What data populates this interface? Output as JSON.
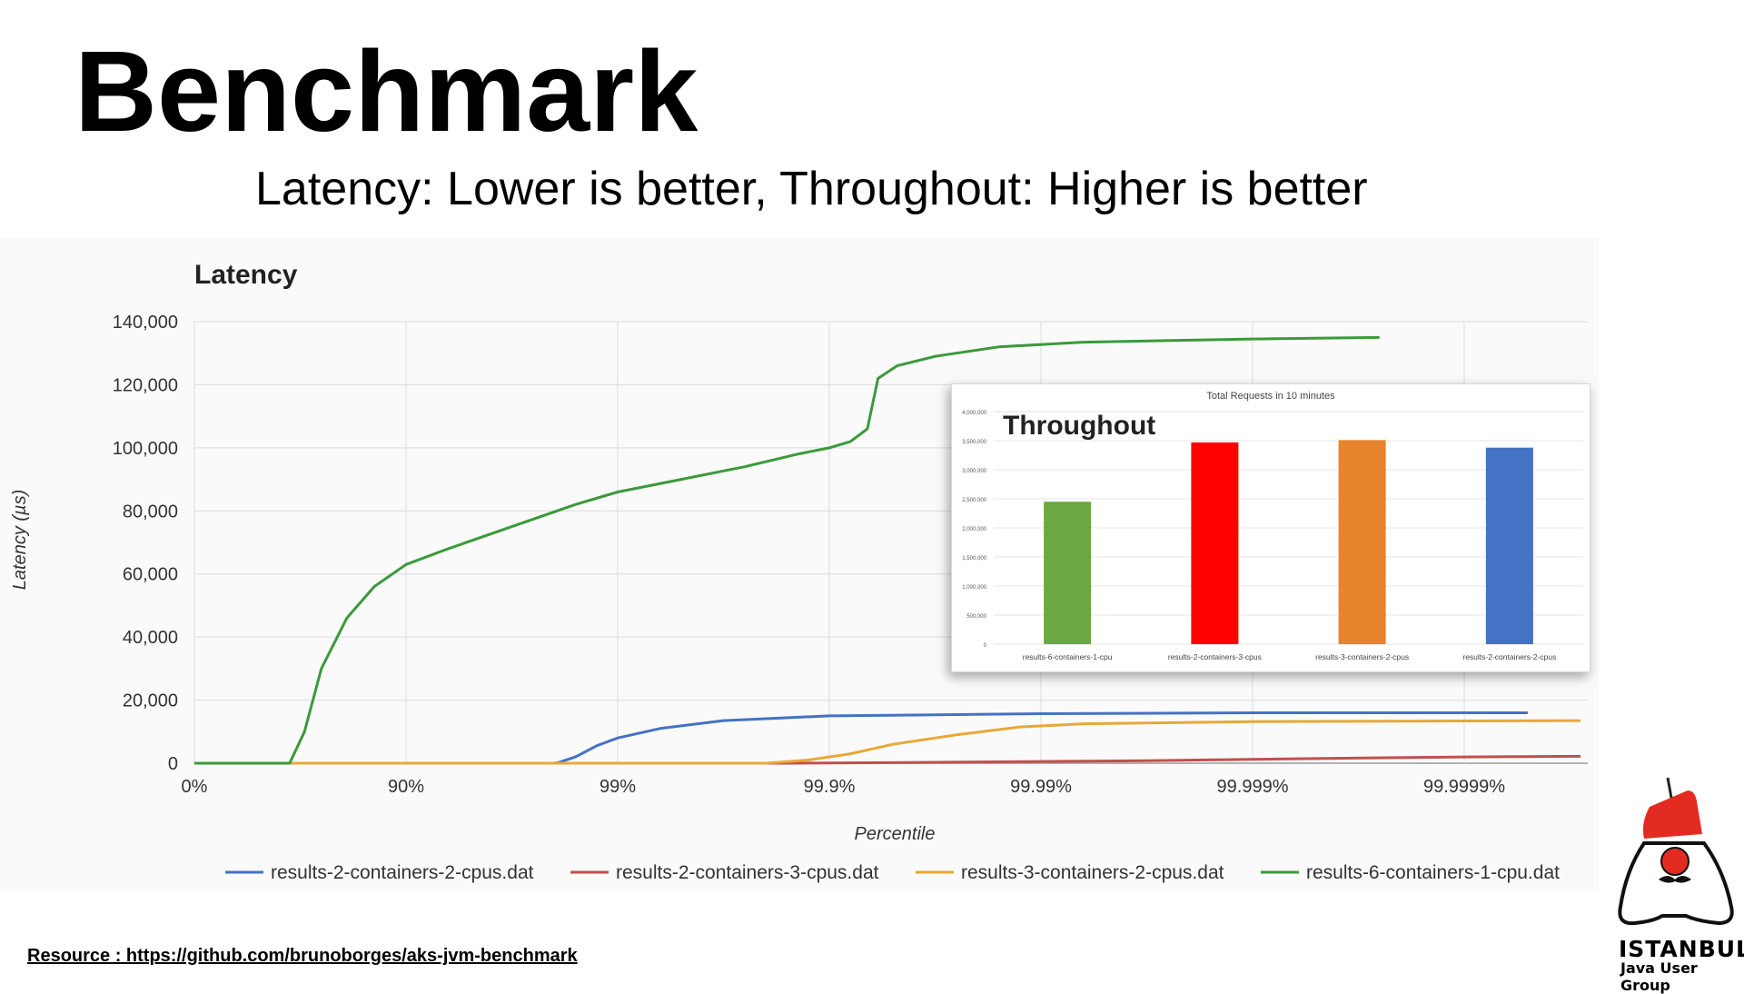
{
  "slide": {
    "title": "Benchmark",
    "subtitle": "Latency: Lower is better, Throughout: Higher is better",
    "resource": "Resource : https://github.com/brunoborges/aks-jvm-benchmark",
    "logo_line1": "ISTANBUL",
    "logo_line2": "Java User Group"
  },
  "chart_data": [
    {
      "type": "line",
      "title": "Latency",
      "xlabel": "Percentile",
      "ylabel": "Latency (µs)",
      "ylim": [
        0,
        140000
      ],
      "yticks": [
        0,
        20000,
        40000,
        60000,
        80000,
        100000,
        120000,
        140000
      ],
      "ytick_labels": [
        "0",
        "20,000",
        "40,000",
        "60,000",
        "80,000",
        "100,000",
        "120,000",
        "140,000"
      ],
      "xtick_labels": [
        "0%",
        "90%",
        "99%",
        "99.9%",
        "99.99%",
        "99.999%",
        "99.9999%"
      ],
      "grid": true,
      "legend_position": "bottom",
      "series": [
        {
          "name": "results-2-containers-2-cpus.dat",
          "color": "#4472c4",
          "points": [
            [
              0,
              0
            ],
            [
              1,
              0
            ],
            [
              1.7,
              0
            ],
            [
              1.72,
              200
            ],
            [
              1.8,
              2000
            ],
            [
              1.9,
              5500
            ],
            [
              2.0,
              8000
            ],
            [
              2.2,
              11000
            ],
            [
              2.5,
              13500
            ],
            [
              3.0,
              15000
            ],
            [
              4.0,
              15700
            ],
            [
              5.0,
              16000
            ],
            [
              6.0,
              16000
            ],
            [
              6.3,
              16000
            ]
          ]
        },
        {
          "name": "results-2-containers-3-cpus.dat",
          "color": "#c0504d",
          "points": [
            [
              0,
              0
            ],
            [
              2.8,
              0
            ],
            [
              3.5,
              300
            ],
            [
              4.5,
              800
            ],
            [
              5.2,
              1400
            ],
            [
              6.0,
              2000
            ],
            [
              6.55,
              2200
            ]
          ]
        },
        {
          "name": "results-3-containers-2-cpus.dat",
          "color": "#e8a838",
          "points": [
            [
              0,
              0
            ],
            [
              2.7,
              0
            ],
            [
              2.9,
              1000
            ],
            [
              3.1,
              3000
            ],
            [
              3.3,
              6000
            ],
            [
              3.6,
              9000
            ],
            [
              3.9,
              11500
            ],
            [
              4.2,
              12500
            ],
            [
              5.0,
              13200
            ],
            [
              6.0,
              13400
            ],
            [
              6.55,
              13500
            ]
          ]
        },
        {
          "name": "results-6-containers-1-cpu.dat",
          "color": "#3a9a3a",
          "points": [
            [
              0,
              0
            ],
            [
              0.45,
              0
            ],
            [
              0.52,
              10000
            ],
            [
              0.6,
              30000
            ],
            [
              0.72,
              46000
            ],
            [
              0.85,
              56000
            ],
            [
              1.0,
              63000
            ],
            [
              1.2,
              68000
            ],
            [
              1.5,
              75000
            ],
            [
              1.8,
              82000
            ],
            [
              2.0,
              86000
            ],
            [
              2.3,
              90000
            ],
            [
              2.6,
              94000
            ],
            [
              2.85,
              98000
            ],
            [
              3.0,
              100000
            ],
            [
              3.1,
              102000
            ],
            [
              3.18,
              106000
            ],
            [
              3.23,
              122000
            ],
            [
              3.32,
              126000
            ],
            [
              3.5,
              129000
            ],
            [
              3.8,
              132000
            ],
            [
              4.2,
              133500
            ],
            [
              5.0,
              134500
            ],
            [
              5.6,
              135000
            ]
          ]
        }
      ]
    },
    {
      "type": "bar",
      "title": "Throughout",
      "subtitle": "Total Requests in 10 minutes",
      "ylim": [
        0,
        4000000
      ],
      "yticks": [
        0,
        500000,
        1000000,
        1500000,
        2000000,
        2500000,
        3000000,
        3500000,
        4000000
      ],
      "ytick_labels": [
        "0",
        "500,000",
        "1,000,000",
        "1,500,000",
        "2,000,000",
        "2,500,000",
        "3,000,000",
        "3,500,000",
        "4,000,000"
      ],
      "categories": [
        "results-6-containers-1-cpu",
        "results-2-containers-3-cpus",
        "results-3-containers-2-cpus",
        "results-2-containers-2-cpus"
      ],
      "values": [
        2450000,
        3470000,
        3510000,
        3380000
      ],
      "colors": [
        "#6aa843",
        "#ff0000",
        "#e8832e",
        "#4472c4"
      ],
      "grid": true
    }
  ]
}
